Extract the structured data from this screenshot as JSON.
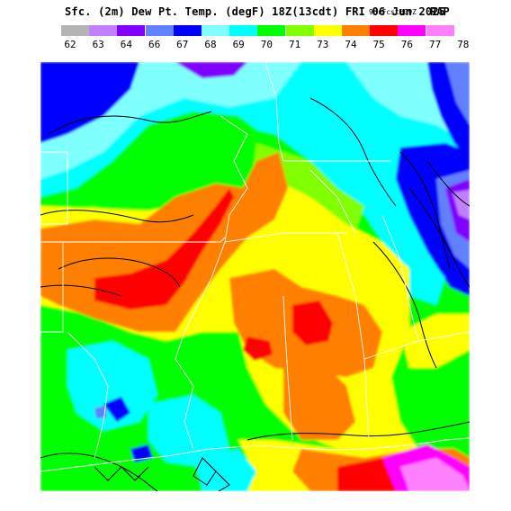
{
  "title": {
    "main": "Sfc. (2m) Dew Pt. Temp. (degF) 18Z(13cdt) FRI 06 Jun 2025",
    "small": "9hrFcst@09Z",
    "model": "RAP"
  },
  "legend": {
    "labels": [
      "62",
      "63",
      "64",
      "66",
      "67",
      "68",
      "69",
      "70",
      "71",
      "73",
      "74",
      "75",
      "76",
      "77",
      "78"
    ],
    "colors": [
      "#b4b4b4",
      "#c080ff",
      "#8000ff",
      "#6080ff",
      "#0000ff",
      "#80ffff",
      "#00ffff",
      "#00ff00",
      "#80ff00",
      "#ffff00",
      "#ff8000",
      "#ff0000",
      "#ff00ff",
      "#ff80ff"
    ]
  },
  "map": {
    "palette": {
      "gray": "#b4b4b4",
      "lavender": "#c080ff",
      "purple": "#8000ff",
      "slate": "#6080ff",
      "blue": "#0000ff",
      "lightcyan": "#80ffff",
      "cyan": "#00ffff",
      "green": "#00ff00",
      "lime": "#80ff00",
      "yellow": "#ffff00",
      "orange": "#ff8000",
      "red": "#ff0000",
      "magenta": "#ff00ff",
      "pink": "#ff80ff"
    },
    "line_colors": {
      "contour": "#000000",
      "state_border": "#ffffff"
    }
  }
}
